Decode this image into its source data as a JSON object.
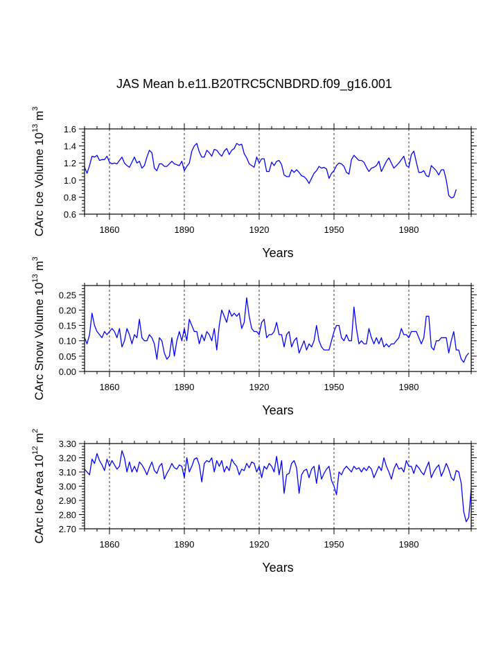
{
  "title": "JAS Mean b.e11.B20TRC5CNBDRD.f09_g16.001",
  "line_color": "#0000ff",
  "chart_data": [
    {
      "type": "line",
      "ylabel": "CArc Ice Volume",
      "ylabel_unit": "10",
      "ylabel_exp": "13",
      "ylabel_unit2": "m",
      "ylabel_exp2": "3",
      "xlabel": "Years",
      "xlim": [
        1850,
        2005
      ],
      "ylim": [
        0.6,
        1.6
      ],
      "x_ticks": [
        1860,
        1890,
        1920,
        1950,
        1980
      ],
      "x_tick_labels": [
        "1860",
        "1890",
        "1920",
        "1950",
        "1980"
      ],
      "y_ticks": [
        0.6,
        0.8,
        1.0,
        1.2,
        1.4,
        1.6
      ],
      "y_tick_labels": [
        "0.6",
        "0.8",
        "1.0",
        "1.2",
        "1.4",
        "1.6"
      ],
      "x_start": 1850,
      "values": [
        1.15,
        1.08,
        1.17,
        1.28,
        1.27,
        1.29,
        1.23,
        1.24,
        1.24,
        1.28,
        1.21,
        1.19,
        1.2,
        1.19,
        1.23,
        1.27,
        1.2,
        1.17,
        1.15,
        1.21,
        1.27,
        1.2,
        1.22,
        1.14,
        1.17,
        1.27,
        1.35,
        1.32,
        1.14,
        1.11,
        1.19,
        1.19,
        1.16,
        1.16,
        1.19,
        1.22,
        1.19,
        1.18,
        1.17,
        1.22,
        1.11,
        1.16,
        1.2,
        1.34,
        1.4,
        1.43,
        1.33,
        1.27,
        1.27,
        1.35,
        1.32,
        1.28,
        1.36,
        1.35,
        1.31,
        1.28,
        1.34,
        1.37,
        1.3,
        1.35,
        1.37,
        1.43,
        1.41,
        1.42,
        1.31,
        1.26,
        1.19,
        1.17,
        1.15,
        1.27,
        1.2,
        1.25,
        1.25,
        1.1,
        1.1,
        1.21,
        1.17,
        1.22,
        1.23,
        1.18,
        1.06,
        1.04,
        1.04,
        1.12,
        1.09,
        1.12,
        1.09,
        1.05,
        1.04,
        1.01,
        0.96,
        1.02,
        1.08,
        1.11,
        1.16,
        1.14,
        1.15,
        1.13,
        1.02,
        1.08,
        1.11,
        1.17,
        1.2,
        1.19,
        1.16,
        1.09,
        1.07,
        1.24,
        1.29,
        1.26,
        1.23,
        1.23,
        1.21,
        1.15,
        1.1,
        1.14,
        1.15,
        1.17,
        1.22,
        1.1,
        1.16,
        1.22,
        1.26,
        1.2,
        1.14,
        1.17,
        1.2,
        1.24,
        1.28,
        1.17,
        1.15,
        1.3,
        1.34,
        1.21,
        1.09,
        1.09,
        1.11,
        1.05,
        1.04,
        1.17,
        1.14,
        1.11,
        1.06,
        1.12,
        1.12,
        1.0,
        0.82,
        0.79,
        0.8,
        0.89
      ]
    },
    {
      "type": "line",
      "ylabel": "CArc Snow Volume",
      "ylabel_unit": "10",
      "ylabel_exp": "13",
      "ylabel_unit2": "m",
      "ylabel_exp2": "3",
      "xlabel": "Years",
      "xlim": [
        1850,
        2005
      ],
      "ylim": [
        0.0,
        0.28
      ],
      "x_ticks": [
        1860,
        1890,
        1920,
        1950,
        1980
      ],
      "x_tick_labels": [
        "1860",
        "1890",
        "1920",
        "1950",
        "1980"
      ],
      "y_ticks": [
        0.0,
        0.05,
        0.1,
        0.15,
        0.2,
        0.25
      ],
      "y_tick_labels": [
        "0.00",
        "0.05",
        "0.10",
        "0.15",
        "0.20",
        "0.25"
      ],
      "x_start": 1850,
      "values": [
        0.11,
        0.09,
        0.12,
        0.19,
        0.15,
        0.13,
        0.12,
        0.11,
        0.13,
        0.12,
        0.13,
        0.14,
        0.13,
        0.11,
        0.14,
        0.08,
        0.1,
        0.14,
        0.12,
        0.09,
        0.12,
        0.11,
        0.17,
        0.11,
        0.1,
        0.1,
        0.12,
        0.11,
        0.09,
        0.04,
        0.11,
        0.1,
        0.06,
        0.04,
        0.05,
        0.11,
        0.05,
        0.1,
        0.13,
        0.1,
        0.14,
        0.1,
        0.17,
        0.15,
        0.13,
        0.13,
        0.09,
        0.12,
        0.1,
        0.13,
        0.12,
        0.1,
        0.14,
        0.07,
        0.15,
        0.2,
        0.18,
        0.16,
        0.2,
        0.18,
        0.19,
        0.18,
        0.19,
        0.14,
        0.16,
        0.24,
        0.18,
        0.14,
        0.13,
        0.13,
        0.12,
        0.16,
        0.17,
        0.11,
        0.12,
        0.12,
        0.13,
        0.16,
        0.12,
        0.12,
        0.08,
        0.12,
        0.13,
        0.08,
        0.1,
        0.11,
        0.06,
        0.08,
        0.1,
        0.07,
        0.09,
        0.08,
        0.1,
        0.15,
        0.1,
        0.08,
        0.07,
        0.07,
        0.07,
        0.1,
        0.13,
        0.15,
        0.15,
        0.11,
        0.1,
        0.12,
        0.1,
        0.1,
        0.21,
        0.14,
        0.09,
        0.1,
        0.09,
        0.09,
        0.14,
        0.11,
        0.09,
        0.11,
        0.09,
        0.11,
        0.08,
        0.09,
        0.08,
        0.09,
        0.09,
        0.1,
        0.11,
        0.14,
        0.12,
        0.12,
        0.11,
        0.13,
        0.13,
        0.13,
        0.11,
        0.09,
        0.11,
        0.18,
        0.18,
        0.08,
        0.07,
        0.1,
        0.1,
        0.11,
        0.11,
        0.11,
        0.06,
        0.1,
        0.13,
        0.07,
        0.07,
        0.04,
        0.03,
        0.05,
        0.06
      ]
    },
    {
      "type": "line",
      "ylabel": "CArc Ice Area",
      "ylabel_unit": "10",
      "ylabel_exp": "12",
      "ylabel_unit2": "m",
      "ylabel_exp2": "2",
      "xlabel": "Years",
      "xlim": [
        1850,
        2005
      ],
      "ylim": [
        2.7,
        3.3
      ],
      "x_ticks": [
        1860,
        1890,
        1920,
        1950,
        1980
      ],
      "x_tick_labels": [
        "1860",
        "1890",
        "1920",
        "1950",
        "1980"
      ],
      "y_ticks": [
        2.7,
        2.8,
        2.9,
        3.0,
        3.1,
        3.2,
        3.3
      ],
      "y_tick_labels": [
        "2.70",
        "2.80",
        "2.90",
        "3.00",
        "3.10",
        "3.20",
        "3.30"
      ],
      "x_start": 1850,
      "values": [
        3.12,
        3.1,
        3.08,
        3.19,
        3.16,
        3.23,
        3.18,
        3.15,
        3.11,
        3.19,
        3.14,
        3.18,
        3.15,
        3.12,
        3.14,
        3.25,
        3.2,
        3.1,
        3.17,
        3.1,
        3.14,
        3.1,
        3.17,
        3.15,
        3.12,
        3.08,
        3.13,
        3.17,
        3.11,
        3.09,
        3.14,
        3.16,
        3.05,
        3.09,
        3.12,
        3.16,
        3.13,
        3.12,
        3.15,
        3.14,
        3.06,
        3.2,
        3.1,
        3.14,
        3.19,
        3.2,
        3.15,
        3.03,
        3.16,
        3.18,
        3.17,
        3.2,
        3.1,
        3.18,
        3.14,
        3.18,
        3.1,
        3.14,
        3.11,
        3.19,
        3.16,
        3.14,
        3.08,
        3.12,
        3.11,
        3.16,
        3.13,
        3.17,
        3.16,
        3.1,
        3.14,
        3.06,
        3.14,
        3.12,
        3.16,
        3.14,
        3.1,
        3.21,
        3.08,
        3.18,
        2.95,
        3.08,
        3.09,
        3.16,
        3.18,
        3.13,
        2.95,
        3.08,
        3.11,
        3.12,
        3.06,
        3.12,
        3.14,
        3.02,
        3.15,
        3.05,
        3.09,
        3.12,
        3.14,
        3.04,
        3.0,
        2.94,
        3.1,
        3.08,
        3.12,
        3.14,
        3.12,
        3.1,
        3.14,
        3.12,
        3.13,
        3.1,
        3.13,
        3.11,
        3.14,
        3.12,
        3.06,
        3.1,
        3.14,
        3.11,
        3.2,
        3.14,
        3.1,
        3.05,
        3.12,
        3.16,
        3.12,
        3.13,
        3.1,
        3.18,
        3.14,
        3.14,
        3.09,
        3.15,
        3.13,
        3.1,
        3.08,
        3.13,
        3.17,
        3.06,
        3.1,
        3.13,
        3.15,
        3.07,
        3.11,
        3.16,
        3.12,
        3.06,
        3.04,
        3.11,
        3.1,
        3.02,
        2.82,
        2.75,
        2.78,
        2.98
      ]
    }
  ]
}
